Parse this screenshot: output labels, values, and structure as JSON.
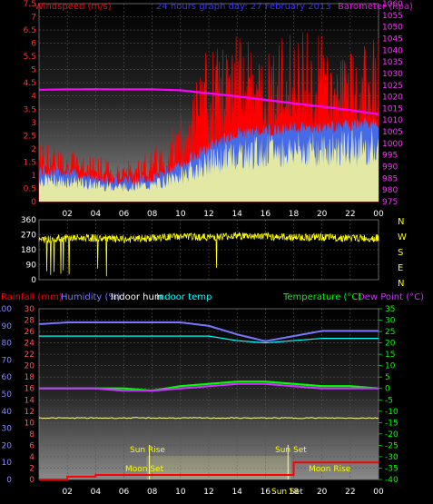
{
  "title": "24 hours graph day: 27 February 2013",
  "colors": {
    "windspeed": "#ff0000",
    "windgust": "#ffffff",
    "windavg": "#3377ff",
    "barometer": "#ff00ff",
    "winddir": "#ffff00",
    "rainfall": "#ff0000",
    "humidity": "#7777ff",
    "indoor_hum": "#ffffff",
    "indoor_temp": "#00ffff",
    "temperature": "#00ff00",
    "dewpoint": "#cc33ff",
    "sun_fill": "#ffff88"
  },
  "chart_data": [
    {
      "id": "wind",
      "type": "line",
      "left_label": "Windspeed (m/s)",
      "right_label": "Barometer (hpa)",
      "ylim_left": [
        0,
        7.5
      ],
      "yticks_left": [
        "0",
        "0.5",
        "1",
        "1.5",
        "2",
        "2.5",
        "3",
        "3.5",
        "4",
        "4.5",
        "5",
        "5.5",
        "6",
        "6.5",
        "7",
        "7.5"
      ],
      "ylim_right": [
        975,
        1060
      ],
      "yticks_right": [
        "975",
        "980",
        "985",
        "990",
        "995",
        "1000",
        "1005",
        "1010",
        "1015",
        "1020",
        "1025",
        "1030",
        "1035",
        "1040",
        "1045",
        "1050",
        "1055",
        "1060"
      ],
      "x_hours": [
        0,
        2,
        4,
        6,
        8,
        10,
        12,
        14,
        16,
        18,
        20,
        22,
        24
      ],
      "xticks": [
        "02",
        "04",
        "06",
        "08",
        "10",
        "12",
        "14",
        "16",
        "18",
        "20",
        "22",
        "00"
      ],
      "series": [
        {
          "key": "barometer",
          "values": [
            1023,
            1023.2,
            1023.3,
            1023.2,
            1023.2,
            1022.8,
            1021.5,
            1020.2,
            1018.7,
            1017.2,
            1015.8,
            1014.3,
            1012.5
          ]
        },
        {
          "key": "windavg",
          "values": [
            1.2,
            1.1,
            0.9,
            0.8,
            0.9,
            1.4,
            2.1,
            2.6,
            2.7,
            2.8,
            2.8,
            2.9,
            3.0
          ]
        },
        {
          "key": "windspeed_peak",
          "values": [
            2.5,
            2.0,
            1.8,
            1.5,
            2.0,
            3.5,
            6.0,
            6.5,
            6.0,
            6.5,
            6.5,
            6.0,
            6.5
          ]
        }
      ]
    },
    {
      "id": "direction",
      "type": "line",
      "ylim": [
        0,
        360
      ],
      "yticks": [
        "0",
        "90",
        "180",
        "270",
        "360"
      ],
      "compass": [
        "N",
        "W",
        "S",
        "E",
        "N"
      ],
      "x_hours": [
        0,
        2,
        4,
        6,
        8,
        10,
        12,
        14,
        16,
        18,
        20,
        22,
        24
      ],
      "values": [
        240,
        250,
        250,
        240,
        250,
        260,
        255,
        265,
        260,
        255,
        255,
        250,
        250
      ]
    },
    {
      "id": "temp",
      "type": "line",
      "left_labels": [
        "Rainfall (mm)",
        "Humidity (%)",
        "Indoor hum",
        "Indoor temp"
      ],
      "right_labels": [
        "Temperature (°C)",
        "Dew Point (°C)"
      ],
      "ylim_rain": [
        0,
        30
      ],
      "yticks_rain": [
        "0",
        "2",
        "4",
        "6",
        "8",
        "10",
        "12",
        "14",
        "16",
        "18",
        "20",
        "22",
        "24",
        "26",
        "28",
        "30"
      ],
      "ylim_hum": [
        0,
        100
      ],
      "yticks_hum": [
        "0",
        "10",
        "20",
        "30",
        "40",
        "50",
        "60",
        "70",
        "80",
        "90",
        "100"
      ],
      "ylim_temp": [
        -40,
        35
      ],
      "yticks_temp": [
        "-40",
        "-35",
        "-30",
        "-25",
        "-20",
        "-15",
        "-10",
        "-5",
        "0",
        "5",
        "10",
        "15",
        "20",
        "25",
        "30",
        "35"
      ],
      "x_hours": [
        0,
        2,
        4,
        6,
        8,
        10,
        12,
        14,
        16,
        18,
        20,
        22,
        24
      ],
      "xticks": [
        "02",
        "04",
        "06",
        "08",
        "10",
        "12",
        "14",
        "16",
        "18",
        "20",
        "22",
        "00"
      ],
      "series": [
        {
          "key": "humidity",
          "values": [
            91,
            92,
            92,
            92,
            92,
            92,
            90,
            85,
            81,
            84,
            87,
            87,
            87
          ]
        },
        {
          "key": "indoor_temp",
          "values": [
            23,
            23,
            23,
            23,
            23,
            23,
            23,
            21,
            20,
            21,
            22,
            22,
            22
          ]
        },
        {
          "key": "temperature",
          "values": [
            0,
            0,
            0,
            0,
            -1,
            1,
            2,
            3,
            3,
            2,
            1,
            1,
            0
          ]
        },
        {
          "key": "dewpoint",
          "values": [
            0,
            0,
            0,
            -1,
            -1,
            0,
            1,
            2,
            2,
            1,
            0,
            0,
            0
          ]
        },
        {
          "key": "indoor_hum",
          "values": [
            36,
            36,
            36,
            36,
            36,
            36,
            36,
            36,
            36,
            36,
            36,
            36,
            36
          ]
        },
        {
          "key": "rainfall",
          "values": [
            0,
            0.5,
            0.8,
            0.8,
            0.8,
            0.8,
            0.8,
            0.8,
            0.8,
            3.0,
            3.0,
            3.0,
            3.0
          ]
        }
      ],
      "annotations": {
        "sun_rise": "Sun Rise",
        "sun_set": "Sun Set",
        "moon_set": "Moon Set",
        "moon_rise": "Moon Rise"
      }
    }
  ]
}
